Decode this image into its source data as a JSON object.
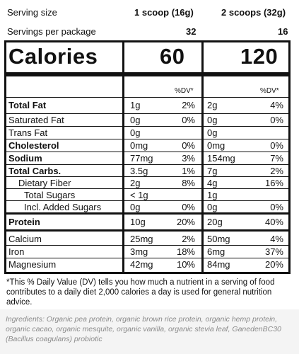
{
  "header": {
    "serving_size_label": "Serving size",
    "serving_1": "1 scoop (16g)",
    "serving_2": "2 scoops (32g)",
    "servings_label": "Servings per package",
    "servings_1": "32",
    "servings_2": "16"
  },
  "calories": {
    "label": "Calories",
    "value_1": "60",
    "value_2": "120"
  },
  "dv_header": "%DV*",
  "nutrients": [
    {
      "name": "Total Fat",
      "bold": true,
      "amt1": "1g",
      "dv1": "2%",
      "amt2": "2g",
      "dv2": "4%"
    },
    {
      "name": "Saturated Fat",
      "bold": false,
      "amt1": "0g",
      "dv1": "0%",
      "amt2": "0g",
      "dv2": "0%"
    },
    {
      "name": "Trans Fat",
      "bold": false,
      "amt1": "0g",
      "dv1": "",
      "amt2": "0g",
      "dv2": ""
    },
    {
      "name": "Cholesterol",
      "bold": true,
      "amt1": "0mg",
      "dv1": "0%",
      "amt2": "0mg",
      "dv2": "0%"
    },
    {
      "name": "Sodium",
      "bold": true,
      "amt1": "77mg",
      "dv1": "3%",
      "amt2": "154mg",
      "dv2": "7%"
    },
    {
      "name": "Total Carbs.",
      "bold": true,
      "amt1": "3.5g",
      "dv1": "1%",
      "amt2": "7g",
      "dv2": "2%"
    },
    {
      "name": "Dietary Fiber",
      "bold": false,
      "amt1": "2g",
      "dv1": "8%",
      "amt2": "4g",
      "dv2": "16%"
    },
    {
      "name": "Total Sugars",
      "bold": false,
      "amt1": "< 1g",
      "dv1": "",
      "amt2": "1g",
      "dv2": ""
    },
    {
      "name": "Incl. Added Sugars",
      "bold": false,
      "amt1": "0g",
      "dv1": "0%",
      "amt2": "0g",
      "dv2": "0%"
    },
    {
      "name": "Protein",
      "bold": true,
      "amt1": "10g",
      "dv1": "20%",
      "amt2": "20g",
      "dv2": "40%"
    },
    {
      "name": "Calcium",
      "bold": false,
      "amt1": "25mg",
      "dv1": "2%",
      "amt2": "50mg",
      "dv2": "4%"
    },
    {
      "name": "Iron",
      "bold": false,
      "amt1": "3mg",
      "dv1": "18%",
      "amt2": "6mg",
      "dv2": "37%"
    },
    {
      "name": "Magnesium",
      "bold": false,
      "amt1": "42mg",
      "dv1": "10%",
      "amt2": "84mg",
      "dv2": "20%"
    }
  ],
  "footnote": "*This % Daily Value (DV) tells you how much a nutrient in a serving of food contributes to a daily diet 2,000 calories a day is used for general nutrition advice.",
  "ingredients": "Ingredients: Organic pea protein, organic brown rice protein, organic hemp protein, organic cacao, organic mesquite, organic vanilla, organic stevia leaf, GanedenBC30 (Bacillus coagulans) probiotic"
}
